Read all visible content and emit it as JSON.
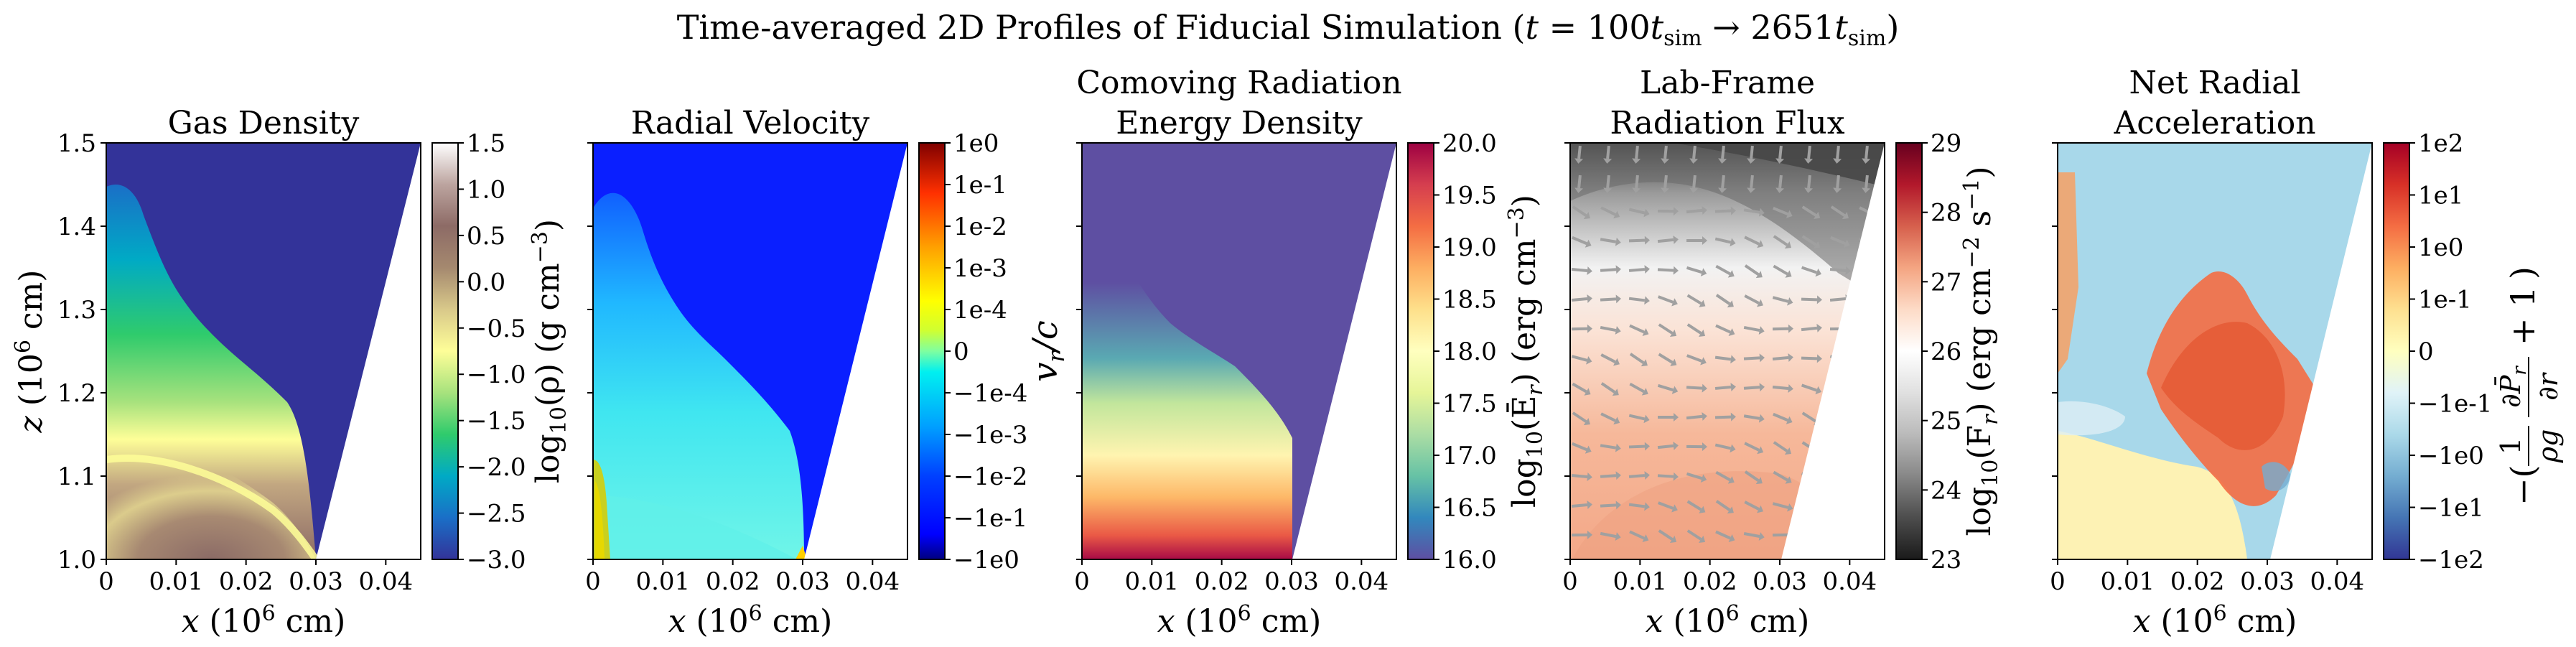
{
  "figure": {
    "suptitle": "Time-averaged 2D Profiles of Fiducial Simulation (t = 100t_sim → 2651t_sim)",
    "suptitle_parts": {
      "prefix": "Time-averaged 2D Profiles of Fiducial Simulation (",
      "t": "t",
      "eq": " = 100",
      "t1": "t",
      "sub1": "sim",
      "arrow": " → 2651",
      "t2": "t",
      "sub2": "sim",
      "suffix": ")"
    }
  },
  "chart_data": [
    {
      "type": "heatmap",
      "title_lines": [
        "Gas Density"
      ],
      "xlabel": "x (10^6 cm)",
      "xlabel_parts": {
        "var": "x",
        "unit": " (10",
        "exp": "6",
        "close": " cm)"
      },
      "ylabel": "z (10^6 cm)",
      "ylabel_parts": {
        "var": "z",
        "unit": " (10",
        "exp": "6",
        "close": " cm)"
      },
      "xlim": [
        0,
        0.045
      ],
      "ylim": [
        1.0,
        1.5
      ],
      "x_ticks": [
        "0",
        "0.01",
        "0.02",
        "0.03",
        "0.04"
      ],
      "y_ticks": [
        "1.0",
        "1.1",
        "1.2",
        "1.3",
        "1.4",
        "1.5"
      ],
      "domain_boundary": [
        [
          0.0305,
          1.0
        ],
        [
          0.045,
          1.5
        ]
      ],
      "colormap": "terrain",
      "colorbar": {
        "label": "log10(ρ) (g cm^-3)",
        "label_parts": {
          "pre": "log",
          "sub": "10",
          "mid": "(ρ) (g cm",
          "sup": "−3",
          "post": ")"
        },
        "scale": "linear",
        "range": [
          -3.0,
          1.5
        ],
        "ticks": [
          "1.5",
          "1.0",
          "0.5",
          "0.0",
          "−0.5",
          "−1.0",
          "−1.5",
          "−2.0",
          "−2.5",
          "−3.0"
        ]
      }
    },
    {
      "type": "heatmap",
      "title_lines": [
        "Radial Velocity"
      ],
      "xlabel": "x (10^6 cm)",
      "xlabel_parts": {
        "var": "x",
        "unit": " (10",
        "exp": "6",
        "close": " cm)"
      },
      "xlim": [
        0,
        0.045
      ],
      "ylim": [
        1.0,
        1.5
      ],
      "x_ticks": [
        "0",
        "0.01",
        "0.02",
        "0.03",
        "0.04"
      ],
      "domain_boundary": [
        [
          0.0305,
          1.0
        ],
        [
          0.045,
          1.5
        ]
      ],
      "colormap": "jet",
      "colorbar": {
        "label": "v_r/c",
        "label_parts": {
          "v": "v",
          "sub": "r",
          "rest": "/c"
        },
        "scale": "symlog",
        "range": [
          -1,
          1
        ],
        "ticks": [
          "1e0",
          "1e-1",
          "1e-2",
          "1e-3",
          "1e-4",
          "0",
          "−1e-4",
          "−1e-3",
          "−1e-2",
          "−1e-1",
          "−1e0"
        ]
      }
    },
    {
      "type": "heatmap",
      "title_lines": [
        "Comoving Radiation",
        "Energy Density"
      ],
      "xlabel": "x (10^6 cm)",
      "xlabel_parts": {
        "var": "x",
        "unit": " (10",
        "exp": "6",
        "close": " cm)"
      },
      "xlim": [
        0,
        0.045
      ],
      "ylim": [
        1.0,
        1.5
      ],
      "x_ticks": [
        "0",
        "0.01",
        "0.02",
        "0.03",
        "0.04"
      ],
      "domain_boundary": [
        [
          0.0305,
          1.0
        ],
        [
          0.045,
          1.5
        ]
      ],
      "colormap": "Spectral_r",
      "colorbar": {
        "label": "log10(Ēr) (erg cm^-3)",
        "label_parts": {
          "pre": "log",
          "sub": "10",
          "mid": "(Ē",
          "sub2": "r",
          "mid2": ") (erg cm",
          "sup": "−3",
          "post": ")"
        },
        "scale": "linear",
        "range": [
          16.0,
          20.0
        ],
        "ticks": [
          "20.0",
          "19.5",
          "19.0",
          "18.5",
          "18.0",
          "17.5",
          "17.0",
          "16.5",
          "16.0"
        ]
      }
    },
    {
      "type": "heatmap",
      "title_lines": [
        "Lab-Frame",
        "Radiation Flux"
      ],
      "xlabel": "x (10^6 cm)",
      "xlabel_parts": {
        "var": "x",
        "unit": " (10",
        "exp": "6",
        "close": " cm)"
      },
      "xlim": [
        0,
        0.045
      ],
      "ylim": [
        1.0,
        1.5
      ],
      "x_ticks": [
        "0",
        "0.01",
        "0.02",
        "0.03",
        "0.04"
      ],
      "domain_boundary": [
        [
          0.0305,
          1.0
        ],
        [
          0.045,
          1.5
        ]
      ],
      "colormap": "RdGy_r",
      "overlay": "flux direction arrows (quiver)",
      "colorbar": {
        "label": "log10(Fr) (erg cm^-2 s^-1)",
        "label_parts": {
          "pre": "log",
          "sub": "10",
          "mid": "(F",
          "sub2": "r",
          "mid2": ") (erg cm",
          "sup": "−2",
          "mid3": " s",
          "sup2": "−1",
          "post": ")"
        },
        "scale": "linear",
        "range": [
          23,
          29
        ],
        "ticks": [
          "29",
          "28",
          "27",
          "26",
          "25",
          "24",
          "23"
        ]
      }
    },
    {
      "type": "heatmap",
      "title_lines": [
        "Net Radial",
        "Acceleration"
      ],
      "xlabel": "x (10^6 cm)",
      "xlabel_parts": {
        "var": "x",
        "unit": " (10",
        "exp": "6",
        "close": " cm)"
      },
      "xlim": [
        0,
        0.045
      ],
      "ylim": [
        1.0,
        1.5
      ],
      "x_ticks": [
        "0",
        "0.01",
        "0.02",
        "0.03",
        "0.04"
      ],
      "domain_boundary": [
        [
          0.0305,
          1.0
        ],
        [
          0.045,
          1.5
        ]
      ],
      "colormap": "RdYlBu_r",
      "colorbar": {
        "label": "−(1/(ρg) ∂P̄r/∂r + 1)",
        "label_parts": {
          "minus": "−(",
          "one": "1",
          "rho_g": "ρg",
          "num": "∂P̄",
          "num_sub": "r",
          "den": "∂r",
          "plus": "+ 1",
          "close": ")"
        },
        "scale": "symlog",
        "range": [
          -100,
          100
        ],
        "ticks": [
          "1e2",
          "1e1",
          "1e0",
          "1e-1",
          "0",
          "−1e-1",
          "−1e0",
          "−1e1",
          "−1e2"
        ]
      }
    }
  ],
  "colors": {
    "terrain": [
      "#333399",
      "#1a6fc7",
      "#00aac5",
      "#2fcb6c",
      "#a7e27d",
      "#fefe98",
      "#d9c98a",
      "#a5896f",
      "#8d6b66",
      "#bca49f",
      "#ffffff"
    ],
    "jet": [
      "#00007f",
      "#0000ff",
      "#007fff",
      "#00ffff",
      "#7fff7f",
      "#ffff00",
      "#ff7f00",
      "#ff0000",
      "#7f0000"
    ],
    "spectral_r": [
      "#5e4fa2",
      "#3288bd",
      "#66c2a5",
      "#abdda4",
      "#e6f598",
      "#ffffbf",
      "#fee08b",
      "#fdae61",
      "#f46d43",
      "#d53e4f",
      "#9e0142"
    ],
    "rdgy_r": [
      "#1a1a1a",
      "#4d4d4d",
      "#878787",
      "#bababa",
      "#e0e0e0",
      "#ffffff",
      "#fddbc7",
      "#f4a582",
      "#d6604d",
      "#b2182b",
      "#67001f"
    ],
    "rdylbu_r": [
      "#313695",
      "#4575b4",
      "#74add1",
      "#abd9e9",
      "#e0f3f8",
      "#ffffbf",
      "#fee090",
      "#fdae61",
      "#f46d43",
      "#d73027",
      "#a50026"
    ]
  }
}
